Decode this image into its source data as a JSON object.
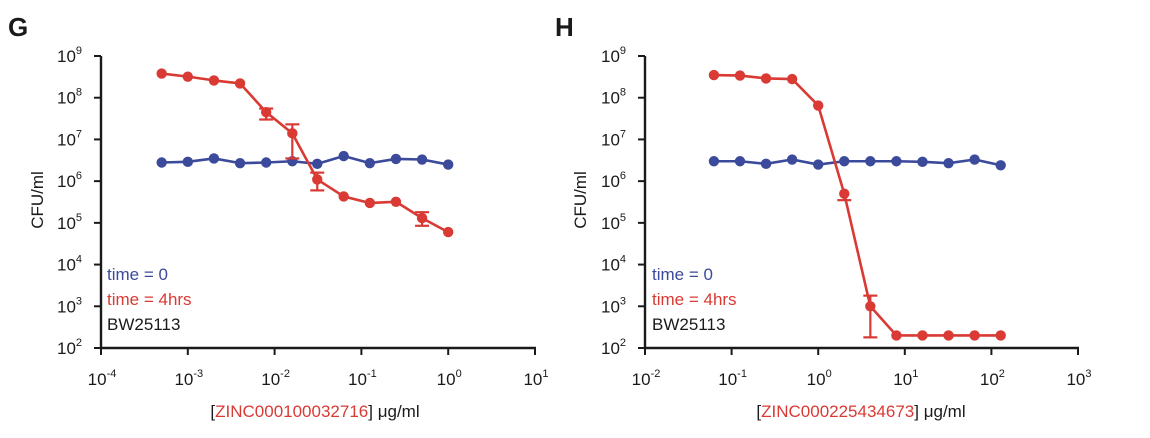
{
  "colors": {
    "blue": "#3b4a9b",
    "red": "#d93a34",
    "axis": "#1a1a1a",
    "black": "#1a1a1a"
  },
  "chart_data": [
    {
      "panel": "G",
      "type": "line",
      "xscale": "log",
      "yscale": "log",
      "xlim": [
        0.0001,
        10
      ],
      "ylim": [
        100,
        1000000000
      ],
      "xticks": [
        {
          "base": "10",
          "exp": "-4",
          "value": 0.0001
        },
        {
          "base": "10",
          "exp": "-3",
          "value": 0.001
        },
        {
          "base": "10",
          "exp": "-2",
          "value": 0.01
        },
        {
          "base": "10",
          "exp": "-1",
          "value": 0.1
        },
        {
          "base": "10",
          "exp": "0",
          "value": 1
        },
        {
          "base": "10",
          "exp": "1",
          "value": 10
        }
      ],
      "yticks": [
        {
          "base": "10",
          "exp": "9",
          "value": 1000000000
        },
        {
          "base": "10",
          "exp": "8",
          "value": 100000000
        },
        {
          "base": "10",
          "exp": "7",
          "value": 10000000
        },
        {
          "base": "10",
          "exp": "6",
          "value": 1000000
        },
        {
          "base": "10",
          "exp": "5",
          "value": 100000
        },
        {
          "base": "10",
          "exp": "4",
          "value": 10000
        },
        {
          "base": "10",
          "exp": "3",
          "value": 1000
        },
        {
          "base": "10",
          "exp": "2",
          "value": 100
        }
      ],
      "ylabel": "CFU/ml",
      "xlabel_prefix": "[",
      "xlabel_compound": "ZINC000100032716",
      "xlabel_suffix": "] μg/ml",
      "legend": [
        "time = 0",
        "time = 4hrs",
        "BW25113"
      ],
      "series": [
        {
          "name": "time = 0",
          "color": "blue",
          "x": [
            0.0005,
            0.001,
            0.002,
            0.004,
            0.008,
            0.016,
            0.031,
            0.0625,
            0.125,
            0.25,
            0.5,
            1
          ],
          "y": [
            2800000,
            2900000,
            3500000,
            2700000,
            2800000,
            3000000,
            2600000,
            4000000,
            2700000,
            3400000,
            3300000,
            2500000
          ]
        },
        {
          "name": "time = 4hrs",
          "color": "red",
          "x": [
            0.0005,
            0.001,
            0.002,
            0.004,
            0.008,
            0.016,
            0.031,
            0.0625,
            0.125,
            0.25,
            0.5,
            1
          ],
          "y": [
            380000000,
            320000000,
            260000000,
            220000000,
            45000000,
            14000000,
            1100000,
            430000,
            300000,
            320000,
            130000,
            60000
          ],
          "err_low": [
            null,
            null,
            null,
            null,
            30000000,
            3500000,
            600000,
            null,
            null,
            null,
            85000,
            null
          ],
          "err_high": [
            null,
            null,
            null,
            null,
            55000000,
            23000000,
            1600000,
            null,
            null,
            null,
            180000,
            null
          ]
        }
      ]
    },
    {
      "panel": "H",
      "type": "line",
      "xscale": "log",
      "yscale": "log",
      "xlim": [
        0.01,
        1000
      ],
      "ylim": [
        100,
        1000000000
      ],
      "xticks": [
        {
          "base": "10",
          "exp": "-2",
          "value": 0.01
        },
        {
          "base": "10",
          "exp": "-1",
          "value": 0.1
        },
        {
          "base": "10",
          "exp": "0",
          "value": 1
        },
        {
          "base": "10",
          "exp": "1",
          "value": 10
        },
        {
          "base": "10",
          "exp": "2",
          "value": 100
        },
        {
          "base": "10",
          "exp": "3",
          "value": 1000
        }
      ],
      "yticks": [
        {
          "base": "10",
          "exp": "9",
          "value": 1000000000
        },
        {
          "base": "10",
          "exp": "8",
          "value": 100000000
        },
        {
          "base": "10",
          "exp": "7",
          "value": 10000000
        },
        {
          "base": "10",
          "exp": "6",
          "value": 1000000
        },
        {
          "base": "10",
          "exp": "5",
          "value": 100000
        },
        {
          "base": "10",
          "exp": "4",
          "value": 10000
        },
        {
          "base": "10",
          "exp": "3",
          "value": 1000
        },
        {
          "base": "10",
          "exp": "2",
          "value": 100
        }
      ],
      "ylabel": "CFU/ml",
      "xlabel_prefix": "[",
      "xlabel_compound": "ZINC000225434673",
      "xlabel_suffix": "] μg/ml",
      "legend": [
        "time = 0",
        "time = 4hrs",
        "BW25113"
      ],
      "series": [
        {
          "name": "time = 0",
          "color": "blue",
          "x": [
            0.0625,
            0.125,
            0.25,
            0.5,
            1,
            2,
            4,
            8,
            16,
            32,
            64,
            128
          ],
          "y": [
            3000000,
            3000000,
            2600000,
            3300000,
            2500000,
            3000000,
            3000000,
            3000000,
            2900000,
            2700000,
            3300000,
            2400000
          ]
        },
        {
          "name": "time = 4hrs",
          "color": "red",
          "x": [
            0.0625,
            0.125,
            0.25,
            0.5,
            1,
            2,
            4,
            8,
            16,
            32,
            64,
            128
          ],
          "y": [
            350000000,
            340000000,
            290000000,
            280000000,
            65000000,
            500000,
            1000,
            200,
            200,
            200,
            200,
            200
          ],
          "err_low": [
            null,
            null,
            null,
            null,
            null,
            350000,
            180,
            null,
            null,
            null,
            null,
            null
          ],
          "err_high": [
            null,
            null,
            null,
            null,
            null,
            null,
            1800,
            null,
            null,
            null,
            null,
            null
          ]
        }
      ]
    }
  ]
}
